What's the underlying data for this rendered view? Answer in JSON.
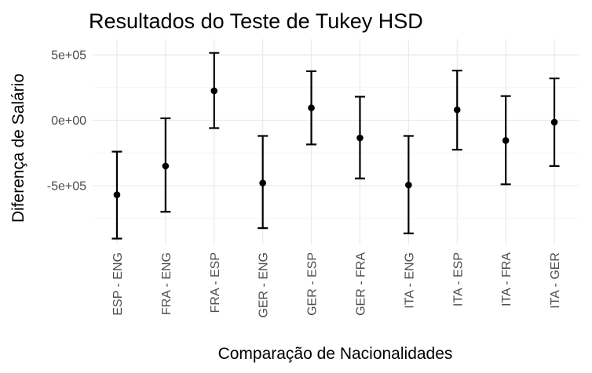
{
  "chart_data": {
    "type": "errorbar",
    "title": "Resultados do Teste de Tukey HSD",
    "xlabel": "Comparação de Nacionalidades",
    "ylabel": "Diferença de Salário",
    "ylim": [
      -950000,
      620000
    ],
    "y_ticks": [
      -500000,
      0,
      500000
    ],
    "y_tick_labels": [
      "-5e+05",
      "0e+00",
      "5e+05"
    ],
    "grid": true,
    "categories": [
      "ESP - ENG",
      "FRA - ENG",
      "FRA - ESP",
      "GER - ENG",
      "GER - ESP",
      "GER - FRA",
      "ITA - ENG",
      "ITA - ESP",
      "ITA - FRA",
      "ITA - GER"
    ],
    "diff": [
      -570000,
      -350000,
      225000,
      -480000,
      95000,
      -135000,
      -495000,
      80000,
      -155000,
      -15000
    ],
    "lower": [
      -905000,
      -700000,
      -60000,
      -825000,
      -185000,
      -445000,
      -865000,
      -225000,
      -490000,
      -350000
    ],
    "upper": [
      -240000,
      15000,
      515000,
      -120000,
      375000,
      180000,
      -120000,
      380000,
      185000,
      320000
    ]
  }
}
